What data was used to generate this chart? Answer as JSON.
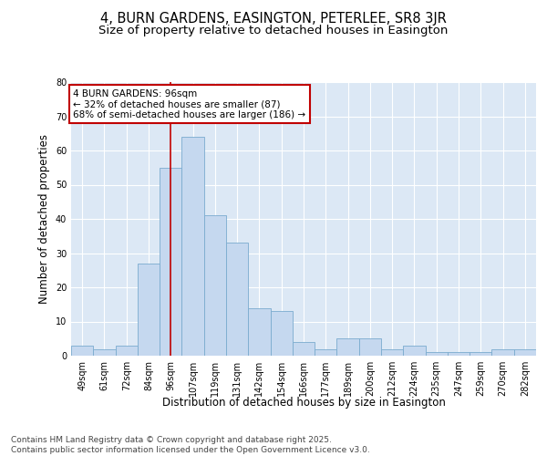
{
  "title": "4, BURN GARDENS, EASINGTON, PETERLEE, SR8 3JR",
  "subtitle": "Size of property relative to detached houses in Easington",
  "xlabel": "Distribution of detached houses by size in Easington",
  "ylabel": "Number of detached properties",
  "categories": [
    "49sqm",
    "61sqm",
    "72sqm",
    "84sqm",
    "96sqm",
    "107sqm",
    "119sqm",
    "131sqm",
    "142sqm",
    "154sqm",
    "166sqm",
    "177sqm",
    "189sqm",
    "200sqm",
    "212sqm",
    "224sqm",
    "235sqm",
    "247sqm",
    "259sqm",
    "270sqm",
    "282sqm"
  ],
  "values": [
    3,
    2,
    3,
    27,
    55,
    64,
    41,
    33,
    14,
    13,
    4,
    2,
    5,
    5,
    2,
    3,
    1,
    1,
    1,
    2,
    2
  ],
  "bar_color": "#c5d8ef",
  "bar_edge_color": "#7aabcf",
  "marker_bin_index": 4,
  "marker_color": "#c00000",
  "ylim": [
    0,
    80
  ],
  "yticks": [
    0,
    10,
    20,
    30,
    40,
    50,
    60,
    70,
    80
  ],
  "annotation_text": "4 BURN GARDENS: 96sqm\n← 32% of detached houses are smaller (87)\n68% of semi-detached houses are larger (186) →",
  "annotation_box_color": "#c00000",
  "background_color": "#dce8f5",
  "footer_text": "Contains HM Land Registry data © Crown copyright and database right 2025.\nContains public sector information licensed under the Open Government Licence v3.0.",
  "title_fontsize": 10.5,
  "subtitle_fontsize": 9.5,
  "axis_label_fontsize": 8.5,
  "tick_fontsize": 7,
  "annotation_fontsize": 7.5,
  "footer_fontsize": 6.5
}
